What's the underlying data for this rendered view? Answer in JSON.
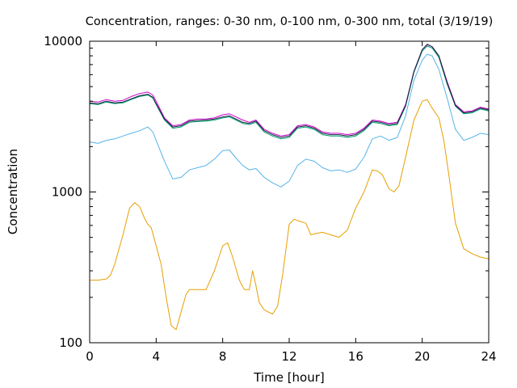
{
  "chart_data": {
    "type": "line",
    "title": "Concentration, ranges: 0-30 nm, 0-100 nm, 0-300 nm, total (3/19/19)",
    "xlabel": "Time [hour]",
    "ylabel": "Concentration",
    "xlim": [
      0,
      24
    ],
    "ylim": [
      100,
      10000
    ],
    "yscale": "log",
    "grid": false,
    "legend": "none",
    "x_ticks": [
      0,
      4,
      8,
      12,
      16,
      20,
      24
    ],
    "y_ticks": [
      100,
      1000,
      10000
    ],
    "x_tick_labels": [
      "0",
      "4",
      "8",
      "12",
      "16",
      "20",
      "24"
    ],
    "y_tick_labels": [
      "100",
      "1000",
      "10000"
    ],
    "series": [
      {
        "color": "#e69f00",
        "x": [
          0,
          0.5,
          1,
          1.25,
          1.5,
          2,
          2.4,
          2.7,
          3,
          3.3,
          3.5,
          3.7,
          4,
          4.3,
          4.6,
          4.9,
          5.2,
          5.5,
          5.8,
          6,
          6.5,
          7,
          7.5,
          8,
          8.3,
          8.6,
          9,
          9.3,
          9.6,
          9.8,
          10,
          10.2,
          10.5,
          11,
          11.3,
          11.6,
          12,
          12.3,
          12.6,
          13,
          13.3,
          13.6,
          14,
          14.5,
          15,
          15.5,
          16,
          16.5,
          17,
          17.3,
          17.6,
          18,
          18.3,
          18.6,
          19,
          19.5,
          20,
          20.3,
          20.6,
          21,
          21.3,
          21.6,
          22,
          22.5,
          23,
          23.5,
          24
        ],
        "values": [
          260,
          260,
          265,
          280,
          330,
          520,
          780,
          850,
          800,
          670,
          610,
          580,
          440,
          330,
          200,
          130,
          122,
          160,
          210,
          225,
          225,
          225,
          300,
          440,
          460,
          370,
          260,
          225,
          225,
          300,
          240,
          185,
          165,
          155,
          175,
          280,
          610,
          660,
          640,
          620,
          520,
          530,
          540,
          520,
          500,
          560,
          780,
          1000,
          1400,
          1380,
          1300,
          1050,
          1000,
          1100,
          1700,
          3000,
          4000,
          4100,
          3600,
          3100,
          2200,
          1300,
          620,
          420,
          390,
          370,
          360
        ]
      },
      {
        "color": "#56b4e9",
        "x": [
          0,
          0.5,
          1,
          1.5,
          2,
          2.5,
          3,
          3.5,
          3.8,
          4,
          4.5,
          5,
          5.5,
          6,
          6.5,
          7,
          7.5,
          8,
          8.4,
          8.8,
          9.2,
          9.6,
          10,
          10.5,
          11,
          11.5,
          12,
          12.5,
          13,
          13.5,
          14,
          14.5,
          15,
          15.5,
          16,
          16.5,
          17,
          17.5,
          18,
          18.5,
          19,
          19.5,
          20,
          20.3,
          20.6,
          21,
          21.5,
          22,
          22.5,
          23,
          23.5,
          24
        ],
        "values": [
          2150,
          2100,
          2200,
          2250,
          2350,
          2450,
          2550,
          2700,
          2500,
          2200,
          1600,
          1220,
          1250,
          1400,
          1450,
          1500,
          1650,
          1880,
          1900,
          1680,
          1500,
          1400,
          1430,
          1250,
          1150,
          1080,
          1180,
          1500,
          1650,
          1600,
          1450,
          1380,
          1400,
          1350,
          1420,
          1700,
          2250,
          2350,
          2200,
          2300,
          3200,
          5500,
          7500,
          8200,
          8000,
          6500,
          4200,
          2600,
          2200,
          2300,
          2450,
          2400
        ]
      },
      {
        "color": "#009e73",
        "x": [
          0,
          0.5,
          1,
          1.5,
          2,
          2.5,
          3,
          3.5,
          3.8,
          4,
          4.5,
          5,
          5.5,
          6,
          6.5,
          7,
          7.5,
          8,
          8.4,
          8.8,
          9.2,
          9.6,
          10,
          10.5,
          11,
          11.5,
          12,
          12.5,
          13,
          13.5,
          14,
          14.5,
          15,
          15.5,
          16,
          16.5,
          17,
          17.5,
          18,
          18.5,
          19,
          19.5,
          20,
          20.3,
          20.6,
          21,
          21.5,
          22,
          22.5,
          23,
          23.5,
          24
        ],
        "values": [
          3850,
          3800,
          3950,
          3850,
          3900,
          4100,
          4300,
          4400,
          4200,
          3800,
          3000,
          2650,
          2700,
          2900,
          2930,
          2950,
          3000,
          3100,
          3150,
          3000,
          2850,
          2800,
          2900,
          2500,
          2350,
          2250,
          2300,
          2650,
          2700,
          2600,
          2400,
          2350,
          2350,
          2300,
          2350,
          2550,
          2900,
          2850,
          2750,
          2800,
          3700,
          6200,
          8600,
          9300,
          9000,
          7800,
          5200,
          3700,
          3300,
          3350,
          3550,
          3450
        ]
      },
      {
        "color": "#cc00cc",
        "x": [
          0,
          0.5,
          1,
          1.5,
          2,
          2.5,
          3,
          3.5,
          3.8,
          4,
          4.5,
          5,
          5.5,
          6,
          6.5,
          7,
          7.5,
          8,
          8.4,
          8.8,
          9.2,
          9.6,
          10,
          10.5,
          11,
          11.5,
          12,
          12.5,
          13,
          13.5,
          14,
          14.5,
          15,
          15.5,
          16,
          16.5,
          17,
          17.5,
          18,
          18.5,
          19,
          19.5,
          20,
          20.3,
          20.6,
          21,
          21.5,
          22,
          22.5,
          23,
          23.5,
          24
        ],
        "values": [
          4000,
          3950,
          4100,
          4000,
          4050,
          4300,
          4500,
          4600,
          4400,
          4000,
          3100,
          2750,
          2800,
          3000,
          3050,
          3050,
          3100,
          3250,
          3300,
          3150,
          3000,
          2900,
          3000,
          2600,
          2450,
          2350,
          2400,
          2750,
          2800,
          2700,
          2500,
          2450,
          2450,
          2400,
          2450,
          2650,
          3000,
          2950,
          2850,
          2900,
          3800,
          6300,
          8800,
          9500,
          9200,
          8000,
          5400,
          3800,
          3400,
          3450,
          3650,
          3550
        ]
      },
      {
        "color": "#1a2440",
        "x": [
          0,
          0.5,
          1,
          1.5,
          2,
          2.5,
          3,
          3.5,
          3.8,
          4,
          4.5,
          5,
          5.5,
          6,
          6.5,
          7,
          7.5,
          8,
          8.4,
          8.8,
          9.2,
          9.6,
          10,
          10.5,
          11,
          11.5,
          12,
          12.5,
          13,
          13.5,
          14,
          14.5,
          15,
          15.5,
          16,
          16.5,
          17,
          17.5,
          18,
          18.5,
          19,
          19.5,
          20,
          20.3,
          20.6,
          21,
          21.5,
          22,
          22.5,
          23,
          23.5,
          24
        ],
        "values": [
          3900,
          3850,
          4000,
          3900,
          3950,
          4150,
          4350,
          4450,
          4250,
          3850,
          3050,
          2700,
          2750,
          2950,
          2980,
          3000,
          3050,
          3150,
          3200,
          3050,
          2900,
          2850,
          2950,
          2550,
          2400,
          2300,
          2350,
          2700,
          2750,
          2650,
          2450,
          2400,
          2400,
          2350,
          2400,
          2600,
          2950,
          2900,
          2800,
          2850,
          3750,
          6300,
          8800,
          9550,
          9200,
          8000,
          5300,
          3750,
          3350,
          3400,
          3600,
          3500
        ]
      }
    ]
  }
}
